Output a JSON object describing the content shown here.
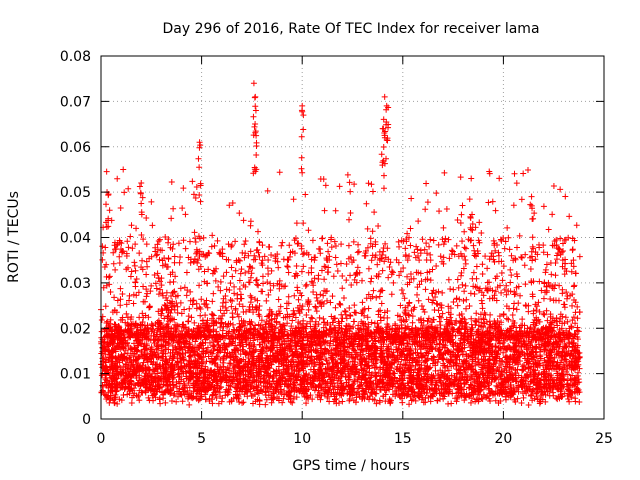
{
  "chart_data": {
    "type": "scatter",
    "title": "Day 296 of 2016, Rate Of TEC Index for receiver lama",
    "xlabel": "GPS time / hours",
    "ylabel": "ROTI / TECUs",
    "xlim": [
      0,
      25
    ],
    "ylim": [
      0,
      0.08
    ],
    "x_ticks": [
      0,
      5,
      10,
      15,
      20,
      25
    ],
    "x_tick_labels": [
      "0",
      "5",
      "10",
      "15",
      "20",
      "25"
    ],
    "y_ticks": [
      0,
      0.01,
      0.02,
      0.03,
      0.04,
      0.05,
      0.06,
      0.07,
      0.08
    ],
    "y_tick_labels": [
      "0",
      "0.01",
      "0.02",
      "0.03",
      "0.04",
      "0.05",
      "0.06",
      "0.07",
      "0.08"
    ],
    "grid": true,
    "marker": "+",
    "marker_color": "#ff0000",
    "data_x_range": [
      0.0,
      23.8
    ],
    "baseline_range": [
      0.005,
      0.02
    ],
    "notable_points": [
      {
        "x": 0.3,
        "y": 0.05
      },
      {
        "x": 2.0,
        "y": 0.052
      },
      {
        "x": 4.9,
        "y": 0.061
      },
      {
        "x": 7.6,
        "y": 0.074
      },
      {
        "x": 7.7,
        "y": 0.068
      },
      {
        "x": 10.0,
        "y": 0.069
      },
      {
        "x": 14.1,
        "y": 0.071
      },
      {
        "x": 14.2,
        "y": 0.069
      },
      {
        "x": 14.0,
        "y": 0.064
      },
      {
        "x": 18.4,
        "y": 0.053
      },
      {
        "x": 21.4,
        "y": 0.049
      }
    ]
  }
}
